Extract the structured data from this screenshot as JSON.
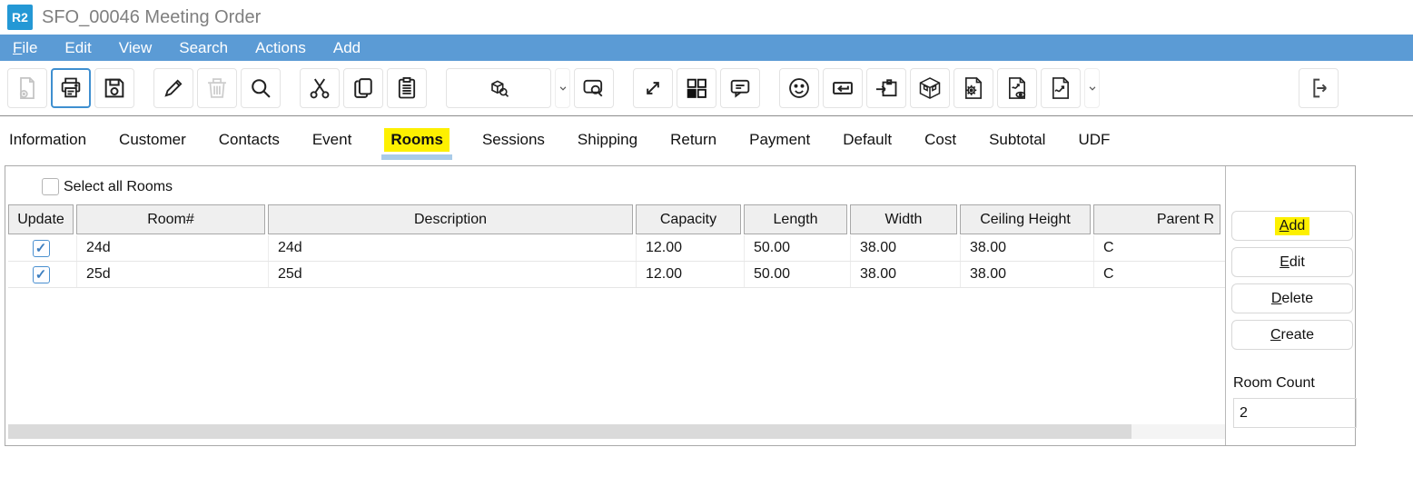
{
  "window": {
    "app_badge": "R2",
    "title": "SFO_00046 Meeting Order"
  },
  "menu": {
    "items": [
      "File",
      "Edit",
      "View",
      "Search",
      "Actions",
      "Add"
    ]
  },
  "toolbar": {
    "icons": [
      "new-document",
      "print",
      "save",
      "edit-pencil",
      "delete-trash",
      "search",
      "cut",
      "copy",
      "paste",
      "item-search",
      "dropdown-chevron",
      "comment-search",
      "expand",
      "tiles",
      "comment",
      "smiley",
      "return-box",
      "checkin-box",
      "room-3d",
      "page-settings",
      "report-preview",
      "report-chart",
      "report-chevron",
      "exit"
    ]
  },
  "tabs": {
    "items": [
      "Information",
      "Customer",
      "Contacts",
      "Event",
      "Rooms",
      "Sessions",
      "Shipping",
      "Return",
      "Payment",
      "Default",
      "Cost",
      "Subtotal",
      "UDF"
    ],
    "active": "Rooms"
  },
  "rooms": {
    "select_all_label": "Select all Rooms",
    "select_all_checked": false,
    "columns": [
      "Update",
      "Room#",
      "Description",
      "Capacity",
      "Length",
      "Width",
      "Ceiling Height",
      "Parent R"
    ],
    "rows": [
      {
        "update_checked": true,
        "room_no": "24d",
        "description": "24d",
        "capacity": "12.00",
        "length": "50.00",
        "width": "38.00",
        "ceiling_height": "38.00",
        "parent_room": "C"
      },
      {
        "update_checked": true,
        "room_no": "25d",
        "description": "25d",
        "capacity": "12.00",
        "length": "50.00",
        "width": "38.00",
        "ceiling_height": "38.00",
        "parent_room": "C"
      }
    ],
    "actions": [
      "Add",
      "Edit",
      "Delete",
      "Create"
    ],
    "highlighted_action": "Add",
    "room_count_label": "Room Count",
    "room_count_value": "2",
    "check_glyph": "✓"
  },
  "colors": {
    "menu_bar": "#5B9BD5",
    "app_badge_blue": "#2498D5",
    "highlight_yellow": "#FDF000",
    "tab_underline": "#A9CBE8",
    "check_blue": "#3D7EBF"
  }
}
